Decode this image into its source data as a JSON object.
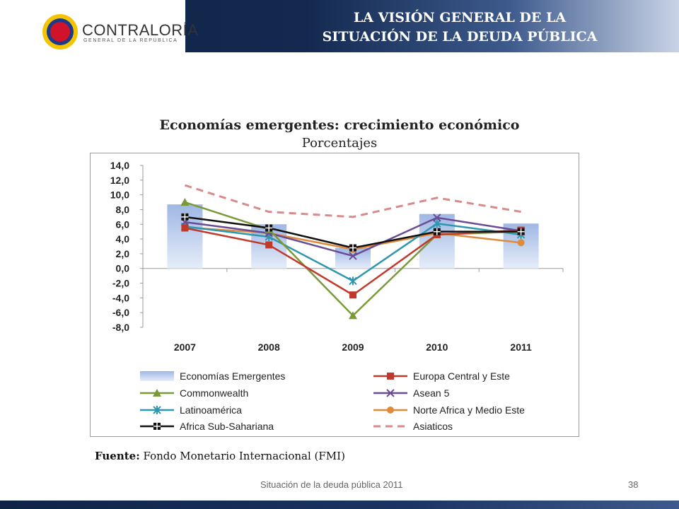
{
  "header": {
    "title_line1": "LA VISIÓN GENERAL DE LA",
    "title_line2": "SITUACIÓN DE LA DEUDA PÚBLICA",
    "logo_text": "CONTRALORÍA",
    "logo_subtext": "GENERAL DE LA REPÚBLICA"
  },
  "footer": {
    "text": "Situación de la deuda pública 2011",
    "page": "38"
  },
  "source": {
    "label": "Fuente:",
    "text": "Fondo Monetario Internacional (FMI)"
  },
  "chart_data": {
    "type": "bar+line",
    "title": "Economías emergentes: crecimiento económico",
    "subtitle": "Porcentajes",
    "categories": [
      "2007",
      "2008",
      "2009",
      "2010",
      "2011"
    ],
    "ylim": [
      -8,
      14
    ],
    "yticks": [
      "14,0",
      "12,0",
      "10,0",
      "8,0",
      "6,0",
      "4,0",
      "2,0",
      "0,0",
      "-2,0",
      "-4,0",
      "-6,0",
      "-8,0"
    ],
    "grid": false,
    "legend_position": "bottom",
    "bar_series": {
      "name": "Economías Emergentes",
      "values": [
        8.7,
        6.0,
        2.8,
        7.4,
        6.1
      ],
      "color": "#9fb7e4"
    },
    "series": [
      {
        "name": "Europa Central y Este",
        "values": [
          5.5,
          3.2,
          -3.6,
          4.6,
          5.2
        ],
        "color": "#c0392b",
        "marker": "square",
        "dash": false
      },
      {
        "name": "Commonwealth",
        "values": [
          9.0,
          5.3,
          -6.4,
          4.6,
          5.0
        ],
        "color": "#7a9a3a",
        "marker": "triangle",
        "dash": false
      },
      {
        "name": "Asean 5",
        "values": [
          6.3,
          4.8,
          1.7,
          6.9,
          5.1
        ],
        "color": "#6a4c93",
        "marker": "x",
        "dash": false
      },
      {
        "name": "Latinoamérica",
        "values": [
          5.7,
          4.3,
          -1.7,
          6.1,
          4.6
        ],
        "color": "#2e97b0",
        "marker": "star",
        "dash": false
      },
      {
        "name": "Norte Africa y Medio Este",
        "values": [
          5.6,
          4.8,
          2.6,
          4.8,
          3.5
        ],
        "color": "#e08a3c",
        "marker": "circle",
        "dash": false
      },
      {
        "name": "Africa Sub-Sahariana",
        "values": [
          7.0,
          5.5,
          2.8,
          5.0,
          5.0
        ],
        "color": "#111111",
        "marker": "squarecross",
        "dash": false
      },
      {
        "name": "Asiaticos",
        "values": [
          11.3,
          7.7,
          7.0,
          9.6,
          7.7
        ],
        "color": "#d98a8a",
        "marker": "none",
        "dash": true
      }
    ]
  }
}
